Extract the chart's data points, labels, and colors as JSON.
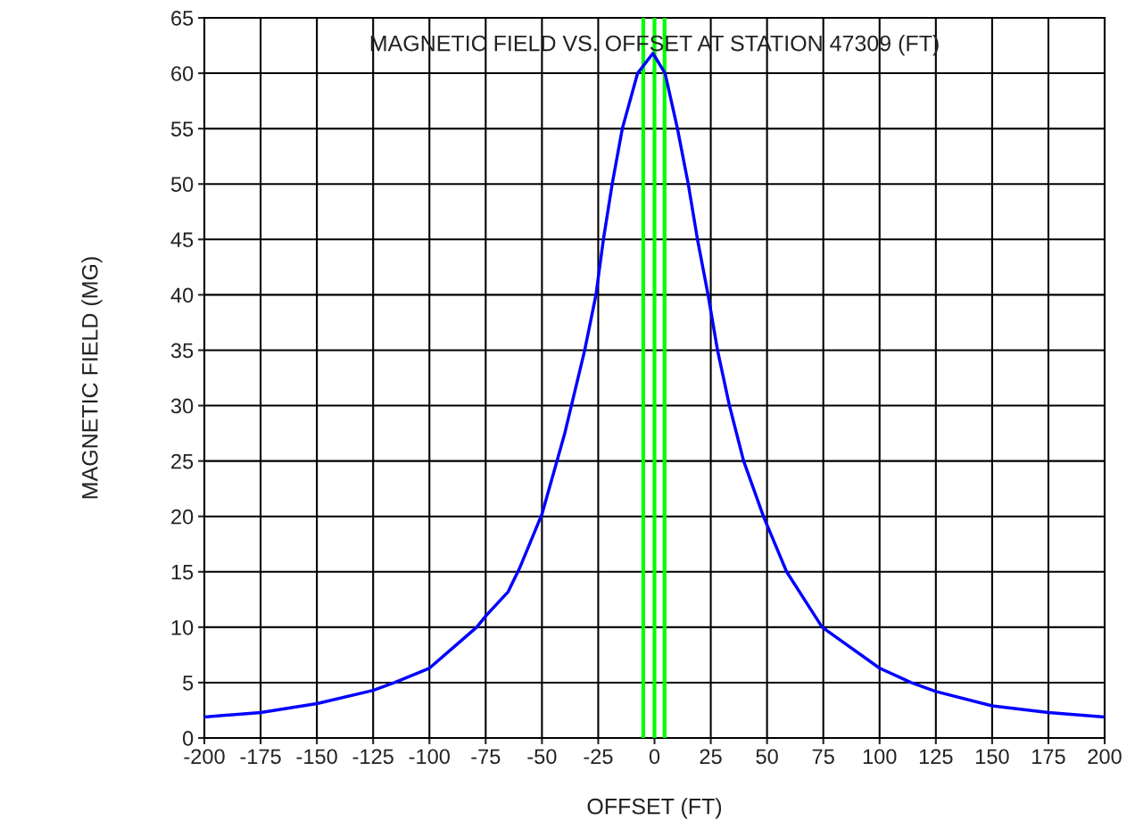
{
  "chart_data": {
    "type": "line",
    "title": "MAGNETIC FIELD VS. OFFSET AT STATION 47309 (FT)",
    "xlabel": "OFFSET (FT)",
    "ylabel": "MAGNETIC FIELD (MG)",
    "series": [
      {
        "color": "#0000ff",
        "x": [
          -200,
          -175,
          -150,
          -125,
          -115.5,
          -100,
          -79,
          -75,
          -65,
          -60,
          -50,
          -40,
          -31,
          -26,
          -22.7,
          -18.8,
          -14.3,
          -7.5,
          -0.7,
          4.7,
          10.2,
          15.0,
          19.1,
          23.8,
          28.0,
          33.3,
          39.6,
          48.4,
          58.7,
          74.5,
          100,
          114,
          125,
          150,
          175,
          200
        ],
        "values": [
          1.9,
          2.3,
          3.1,
          4.3,
          5,
          6.3,
          10,
          11,
          13.2,
          15.3,
          20.2,
          27.4,
          35,
          40,
          45,
          50,
          55,
          60,
          61.8,
          60,
          55,
          50,
          45,
          40,
          35,
          30,
          25,
          20,
          15,
          10,
          6.3,
          5,
          4.2,
          2.9,
          2.3,
          1.9
        ]
      }
    ],
    "ref_lines": [
      {
        "axis": "x",
        "value": -5,
        "color": "#00ff00"
      },
      {
        "axis": "x",
        "value": 0,
        "color": "#00ff00"
      },
      {
        "axis": "x",
        "value": 4.5,
        "color": "#00ff00"
      }
    ],
    "xlim": [
      -200,
      200
    ],
    "xticks": [
      -200,
      -175,
      -150,
      -125,
      -100,
      -75,
      -50,
      -25,
      0,
      25,
      50,
      75,
      100,
      125,
      150,
      175,
      200
    ],
    "ylim": [
      0,
      65
    ],
    "yticks": [
      0,
      5,
      10,
      15,
      20,
      25,
      30,
      35,
      40,
      45,
      50,
      55,
      60,
      65
    ],
    "grid": true,
    "legend": false,
    "marker": "none",
    "line_style": "solid"
  }
}
